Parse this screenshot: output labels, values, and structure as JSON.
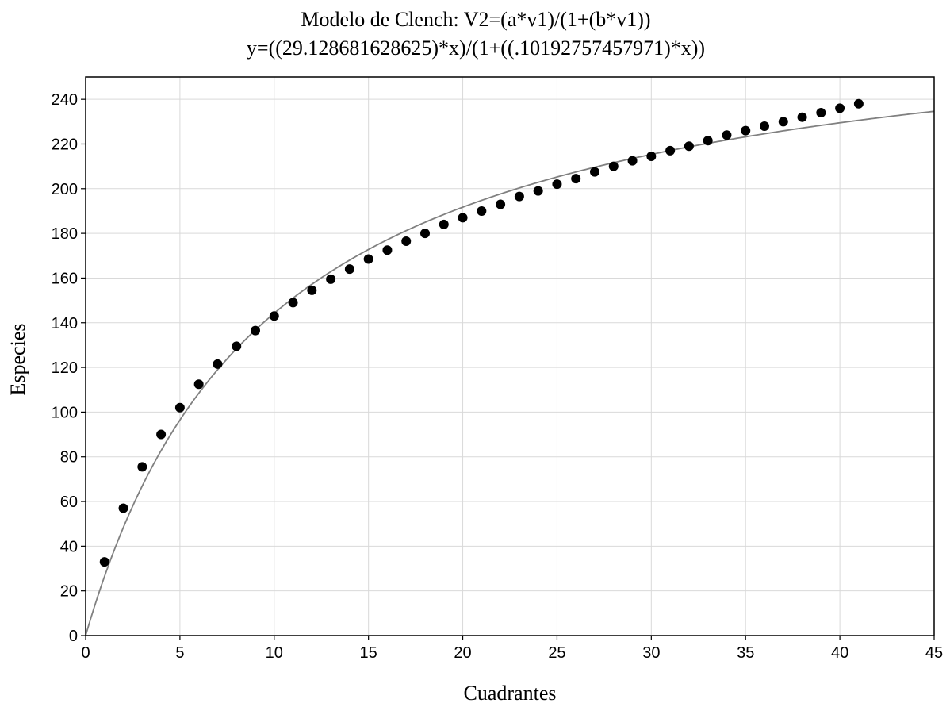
{
  "chart_data": {
    "type": "scatter",
    "title": "Modelo de Clench: V2=(a*v1)/(1+(b*v1))",
    "subtitle": "y=((29.128681628625)*x)/(1+((.10192757457971)*x))",
    "xlabel": "Cuadrantes",
    "ylabel": "Especies",
    "xlim": [
      0,
      45
    ],
    "ylim": [
      0,
      250
    ],
    "xticks": [
      "0",
      "5",
      "10",
      "15",
      "20",
      "25",
      "30",
      "35",
      "40",
      "45"
    ],
    "yticks": [
      "0",
      "20",
      "40",
      "60",
      "80",
      "100",
      "120",
      "140",
      "160",
      "180",
      "200",
      "220",
      "240"
    ],
    "grid": true,
    "series": [
      {
        "x": [
          1,
          2,
          3,
          4,
          5,
          6,
          7,
          8,
          9,
          10,
          11,
          12,
          13,
          14,
          15,
          16,
          17,
          18,
          19,
          20,
          21,
          22,
          23,
          24,
          25,
          26,
          27,
          28,
          29,
          30,
          31,
          32,
          33,
          34,
          35,
          36,
          37,
          38,
          39,
          40,
          41
        ],
        "y": [
          33,
          57,
          75.5,
          90,
          102,
          112.5,
          121.5,
          129.5,
          136.5,
          143,
          149,
          154.5,
          159.5,
          164,
          168.5,
          172.5,
          176.5,
          180,
          184,
          187,
          190,
          193,
          196.5,
          199,
          202,
          204.5,
          207.5,
          210,
          212.5,
          214.5,
          217,
          219,
          221.5,
          224,
          226,
          228,
          230,
          232,
          234,
          236,
          238
        ]
      }
    ],
    "fit": {
      "a": 29.128681628625,
      "b": 0.10192757457971
    },
    "colors": {
      "points": "#000000",
      "curve": "#808080",
      "grid": "#d9d9d9",
      "axes": "#000000"
    }
  }
}
